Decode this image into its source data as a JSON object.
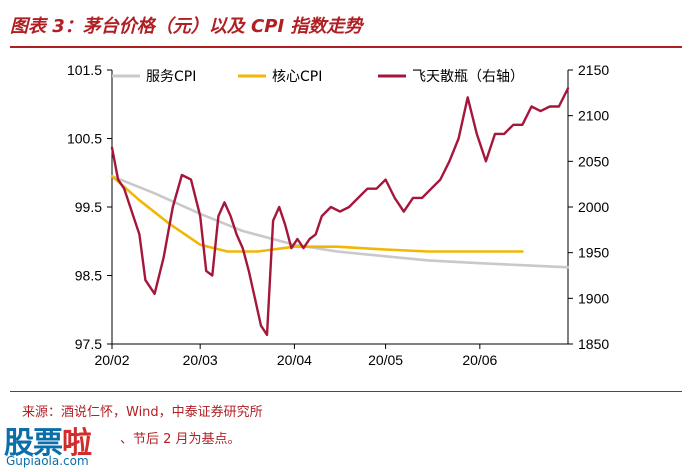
{
  "header": {
    "title": "图表 3：茅台价格（元）以及 CPI 指数走势"
  },
  "footer": {
    "source": "来源：酒说仁怀，Wind，中泰证券研究所",
    "note": "、节后 2 月为基点。"
  },
  "watermark": {
    "chinese": "股票啦",
    "english": "Gupiaola.com"
  },
  "colors": {
    "accent": "#b01f24",
    "service_cpi": "#c9c9c9",
    "core_cpi": "#f2b705",
    "feitian": "#a4173b"
  },
  "chart_data": {
    "type": "line",
    "x_ticks": [
      "20/02",
      "20/03",
      "20/04",
      "20/05",
      "20/06"
    ],
    "x_range": [
      "2020-02-01",
      "2020-06-30"
    ],
    "y_left": {
      "range": [
        97.5,
        101.5
      ],
      "ticks": [
        "97.5",
        "98.5",
        "99.5",
        "100.5",
        "101.5"
      ]
    },
    "y_right": {
      "range": [
        1850,
        2150
      ],
      "ticks": [
        "1850",
        "1900",
        "1950",
        "2000",
        "2050",
        "2100",
        "2150"
      ]
    },
    "legend": {
      "placement": "top",
      "items": [
        "服务CPI",
        "核心CPI",
        "飞天散瓶（右轴）"
      ]
    },
    "grid": false,
    "series": [
      {
        "name": "服务CPI",
        "axis": "left",
        "color": "#c9c9c9",
        "x": [
          "2020-02-01",
          "2020-02-15",
          "2020-03-01",
          "2020-03-15",
          "2020-04-01",
          "2020-04-15",
          "2020-05-01",
          "2020-05-15",
          "2020-06-01",
          "2020-06-15",
          "2020-06-30"
        ],
        "y": [
          99.95,
          99.7,
          99.4,
          99.15,
          98.95,
          98.85,
          98.78,
          98.72,
          98.68,
          98.65,
          98.62
        ]
      },
      {
        "name": "核心CPI",
        "axis": "left",
        "color": "#f2b705",
        "x": [
          "2020-02-01",
          "2020-02-10",
          "2020-02-20",
          "2020-03-01",
          "2020-03-10",
          "2020-03-20",
          "2020-04-01",
          "2020-04-15",
          "2020-05-01",
          "2020-05-15",
          "2020-06-01",
          "2020-06-15"
        ],
        "y": [
          99.95,
          99.6,
          99.25,
          98.95,
          98.85,
          98.85,
          98.92,
          98.92,
          98.88,
          98.85,
          98.85,
          98.85
        ]
      },
      {
        "name": "飞天散瓶（右轴）",
        "axis": "right",
        "color": "#a4173b",
        "x": [
          "2020-02-01",
          "2020-02-03",
          "2020-02-05",
          "2020-02-08",
          "2020-02-10",
          "2020-02-12",
          "2020-02-15",
          "2020-02-18",
          "2020-02-21",
          "2020-02-24",
          "2020-02-27",
          "2020-03-01",
          "2020-03-03",
          "2020-03-05",
          "2020-03-07",
          "2020-03-09",
          "2020-03-11",
          "2020-03-13",
          "2020-03-15",
          "2020-03-17",
          "2020-03-19",
          "2020-03-21",
          "2020-03-23",
          "2020-03-25",
          "2020-03-27",
          "2020-03-29",
          "2020-03-31",
          "2020-04-02",
          "2020-04-04",
          "2020-04-06",
          "2020-04-08",
          "2020-04-10",
          "2020-04-13",
          "2020-04-16",
          "2020-04-19",
          "2020-04-22",
          "2020-04-25",
          "2020-04-28",
          "2020-05-01",
          "2020-05-04",
          "2020-05-07",
          "2020-05-10",
          "2020-05-13",
          "2020-05-16",
          "2020-05-19",
          "2020-05-22",
          "2020-05-25",
          "2020-05-28",
          "2020-05-31",
          "2020-06-03",
          "2020-06-06",
          "2020-06-09",
          "2020-06-12",
          "2020-06-15",
          "2020-06-18",
          "2020-06-21",
          "2020-06-24",
          "2020-06-27",
          "2020-06-30"
        ],
        "y": [
          2065,
          2030,
          2020,
          1990,
          1970,
          1920,
          1905,
          1945,
          2000,
          2035,
          2030,
          1990,
          1930,
          1925,
          1990,
          2005,
          1990,
          1970,
          1955,
          1930,
          1900,
          1870,
          1860,
          1985,
          2000,
          1980,
          1955,
          1965,
          1955,
          1965,
          1970,
          1990,
          2000,
          1995,
          2000,
          2010,
          2020,
          2020,
          2030,
          2010,
          1995,
          2010,
          2010,
          2020,
          2030,
          2050,
          2075,
          2120,
          2080,
          2050,
          2080,
          2080,
          2090,
          2090,
          2110,
          2105,
          2110,
          2110,
          2130
        ]
      }
    ]
  }
}
